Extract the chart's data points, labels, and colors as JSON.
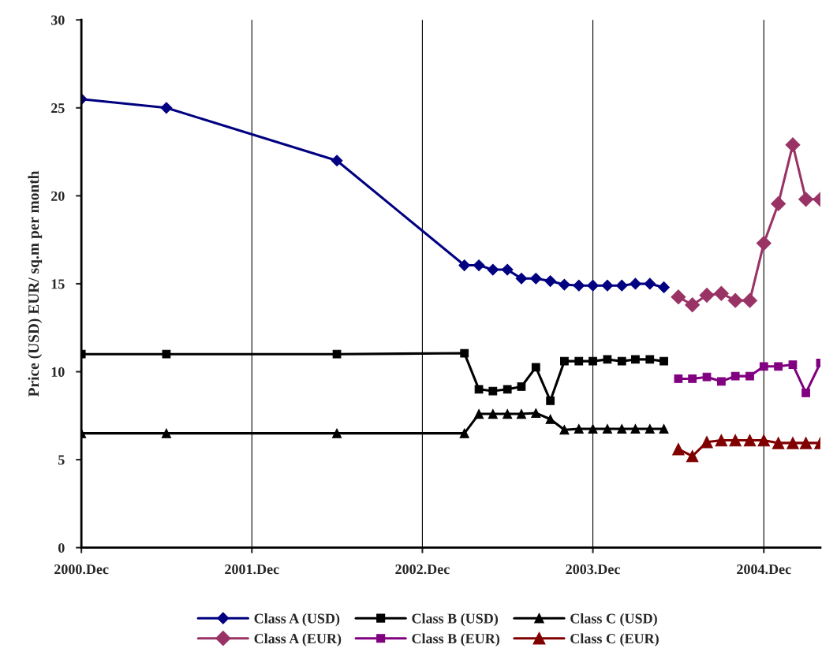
{
  "chart_data": {
    "type": "line",
    "ylabel": "Price (USD) EUR/ sq.m per month",
    "xlim": [
      "2000-12",
      "2005-04"
    ],
    "xticks": [
      {
        "value": "2000-12",
        "label": "2000.Dec"
      },
      {
        "value": "2001-12",
        "label": "2001.Dec"
      },
      {
        "value": "2002-12",
        "label": "2002.Dec"
      },
      {
        "value": "2003-12",
        "label": "2003.Dec"
      },
      {
        "value": "2004-12",
        "label": "2004.Dec"
      }
    ],
    "ylim": [
      0,
      30
    ],
    "yticks": [
      0,
      5,
      10,
      15,
      20,
      25,
      30
    ],
    "grid": "x",
    "legend": "bottom",
    "line_style": "solid",
    "series": [
      {
        "name": "Class A (USD)",
        "color": "#000080",
        "marker": "diamond",
        "x": [
          "2000-12",
          "2001-06",
          "2002-06",
          "2003-03",
          "2003-04",
          "2003-05",
          "2003-06",
          "2003-07",
          "2003-08",
          "2003-09",
          "2003-10",
          "2003-11",
          "2003-12",
          "2004-01",
          "2004-02",
          "2004-03",
          "2004-04",
          "2004-05"
        ],
        "values": [
          25.5,
          25.0,
          22.0,
          16.05,
          16.05,
          15.8,
          15.8,
          15.3,
          15.3,
          15.15,
          14.95,
          14.9,
          14.9,
          14.9,
          14.9,
          15.0,
          15.0,
          14.8
        ]
      },
      {
        "name": "Class B (USD)",
        "color": "#000000",
        "marker": "square",
        "x": [
          "2000-12",
          "2001-06",
          "2002-06",
          "2003-03",
          "2003-04",
          "2003-05",
          "2003-06",
          "2003-07",
          "2003-08",
          "2003-09",
          "2003-10",
          "2003-11",
          "2003-12",
          "2004-01",
          "2004-02",
          "2004-03",
          "2004-04",
          "2004-05"
        ],
        "values": [
          11.0,
          11.0,
          11.0,
          11.05,
          9.0,
          8.9,
          9.0,
          9.15,
          10.25,
          8.35,
          10.6,
          10.6,
          10.6,
          10.7,
          10.6,
          10.7,
          10.7,
          10.6
        ]
      },
      {
        "name": "Class C (USD)",
        "color": "#000000",
        "marker": "triangle",
        "x": [
          "2000-12",
          "2001-06",
          "2002-06",
          "2003-03",
          "2003-04",
          "2003-05",
          "2003-06",
          "2003-07",
          "2003-08",
          "2003-09",
          "2003-10",
          "2003-11",
          "2003-12",
          "2004-01",
          "2004-02",
          "2004-03",
          "2004-04",
          "2004-05"
        ],
        "values": [
          6.5,
          6.5,
          6.5,
          6.5,
          7.6,
          7.6,
          7.6,
          7.6,
          7.65,
          7.3,
          6.7,
          6.75,
          6.75,
          6.75,
          6.75,
          6.75,
          6.75,
          6.75
        ]
      },
      {
        "name": "Class A (EUR)",
        "color": "#993366",
        "marker": "diamond",
        "x": [
          "2004-06",
          "2004-07",
          "2004-08",
          "2004-09",
          "2004-10",
          "2004-11",
          "2004-12",
          "2005-01",
          "2005-02",
          "2005-03",
          "2005-04"
        ],
        "values": [
          14.25,
          13.8,
          14.35,
          14.45,
          14.05,
          14.05,
          17.3,
          19.55,
          22.9,
          19.8,
          19.8
        ]
      },
      {
        "name": "Class B (EUR)",
        "color": "#800080",
        "marker": "square",
        "x": [
          "2004-06",
          "2004-07",
          "2004-08",
          "2004-09",
          "2004-10",
          "2004-11",
          "2004-12",
          "2005-01",
          "2005-02",
          "2005-03",
          "2005-04"
        ],
        "values": [
          9.6,
          9.6,
          9.7,
          9.45,
          9.75,
          9.75,
          10.3,
          10.3,
          10.4,
          8.8,
          10.5
        ]
      },
      {
        "name": "Class C (EUR)",
        "color": "#800000",
        "marker": "triangle",
        "x": [
          "2004-06",
          "2004-07",
          "2004-08",
          "2004-09",
          "2004-10",
          "2004-11",
          "2004-12",
          "2005-01",
          "2005-02",
          "2005-03",
          "2005-04"
        ],
        "values": [
          5.6,
          5.2,
          6.0,
          6.1,
          6.1,
          6.1,
          6.1,
          5.95,
          5.95,
          5.95,
          5.95
        ]
      }
    ]
  }
}
